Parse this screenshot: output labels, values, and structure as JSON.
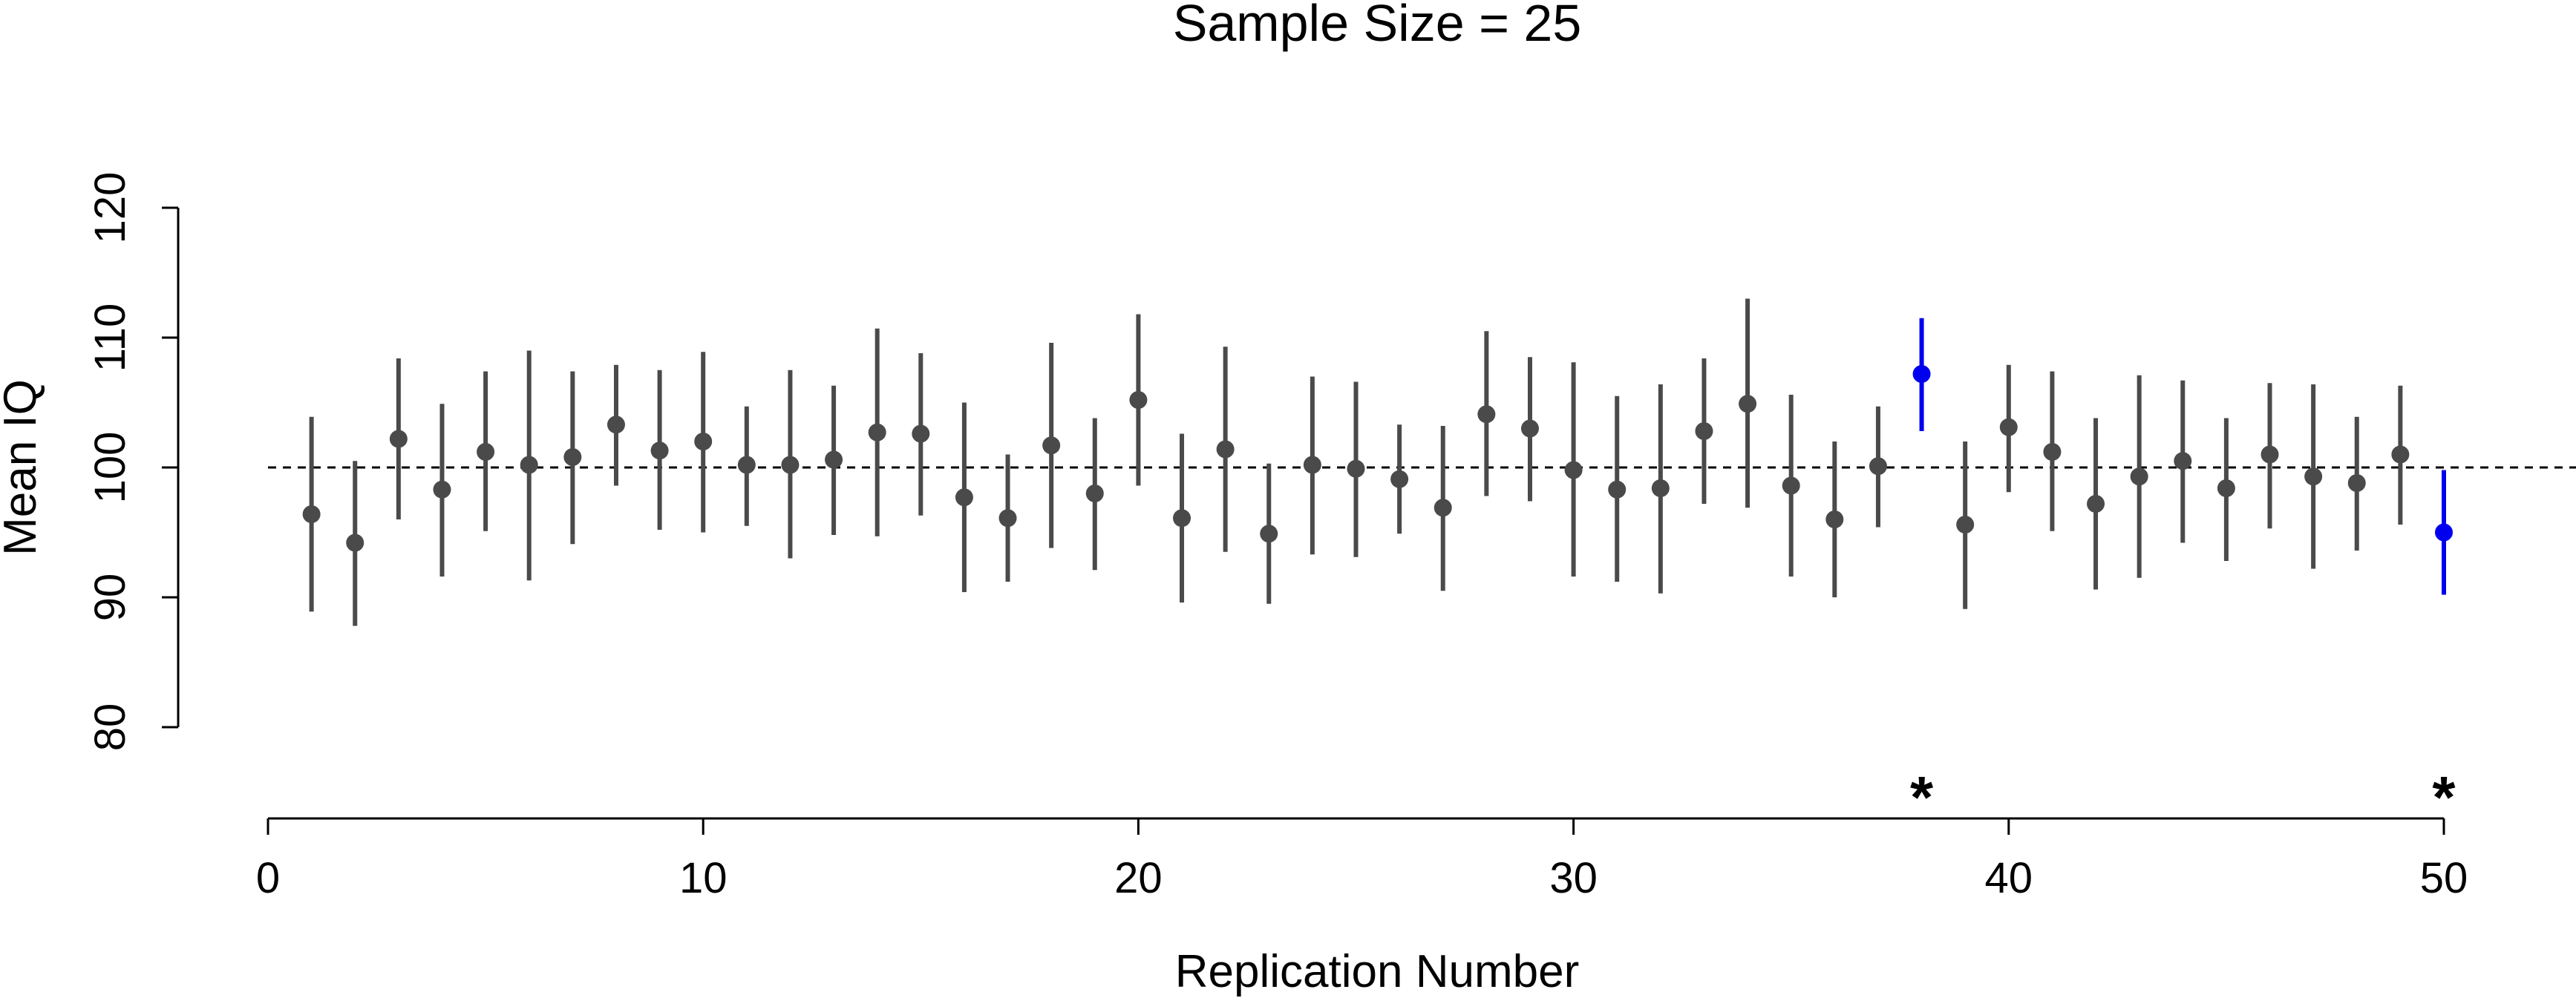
{
  "chart_data": {
    "type": "scatter",
    "title": "Sample Size = 25",
    "xlabel": "Replication Number",
    "ylabel": "Mean IQ",
    "xlim": [
      0,
      50
    ],
    "ylim": [
      80,
      120
    ],
    "x_ticks": [
      0,
      10,
      20,
      30,
      40,
      50
    ],
    "y_ticks": [
      80,
      90,
      100,
      110,
      120
    ],
    "reference_line": 100,
    "grid": false,
    "colors": {
      "normal": "#4a4a4a",
      "miss": "#0000ee",
      "reference": "#000000"
    },
    "marker_symbol": "*",
    "series": [
      {
        "x": [
          1,
          2,
          3,
          4,
          5,
          6,
          7,
          8,
          9,
          10,
          11,
          12,
          13,
          14,
          15,
          16,
          17,
          18,
          19,
          20,
          21,
          22,
          23,
          24,
          25,
          26,
          27,
          28,
          29,
          30,
          31,
          32,
          33,
          34,
          35,
          36,
          37,
          38,
          39,
          40,
          41,
          42,
          43,
          44,
          45,
          46,
          47,
          48,
          49,
          50
        ],
        "mean": [
          96.4,
          94.2,
          102.2,
          98.3,
          101.2,
          100.2,
          100.8,
          103.3,
          101.3,
          102.0,
          100.2,
          100.2,
          100.6,
          102.7,
          102.6,
          97.7,
          96.1,
          101.7,
          98.0,
          105.2,
          96.1,
          101.4,
          94.9,
          100.2,
          99.9,
          99.1,
          96.9,
          104.1,
          103.0,
          99.8,
          98.3,
          98.4,
          102.8,
          104.9,
          98.6,
          96.0,
          100.1,
          107.2,
          95.6,
          103.1,
          101.2,
          97.2,
          99.3,
          100.5,
          98.4,
          101.0,
          99.3,
          98.8,
          101.0,
          95.0
        ],
        "lower": [
          88.9,
          87.8,
          96.0,
          91.6,
          95.1,
          91.3,
          94.1,
          98.6,
          95.2,
          95.0,
          95.5,
          93.0,
          94.8,
          94.7,
          96.3,
          90.4,
          91.2,
          93.8,
          92.1,
          98.6,
          89.6,
          93.5,
          89.5,
          93.3,
          93.1,
          94.9,
          90.5,
          97.8,
          97.4,
          91.6,
          91.2,
          90.3,
          97.2,
          96.9,
          91.6,
          90.0,
          95.4,
          102.8,
          89.1,
          98.1,
          95.1,
          90.6,
          91.5,
          94.2,
          92.8,
          95.3,
          92.2,
          93.6,
          95.6,
          90.2
        ],
        "upper": [
          103.9,
          100.5,
          108.4,
          104.9,
          107.4,
          109.0,
          107.4,
          107.9,
          107.5,
          108.9,
          104.7,
          107.5,
          106.3,
          110.7,
          108.8,
          105.0,
          101.0,
          109.6,
          103.8,
          111.8,
          102.6,
          109.3,
          100.3,
          107.0,
          106.6,
          103.3,
          103.2,
          110.5,
          108.5,
          108.1,
          105.5,
          106.4,
          108.4,
          113.0,
          105.6,
          102.0,
          104.7,
          111.5,
          102.0,
          107.9,
          107.4,
          103.8,
          107.1,
          106.7,
          103.8,
          106.5,
          106.4,
          103.9,
          106.3,
          99.8
        ],
        "excludes_reference": [
          false,
          false,
          false,
          false,
          false,
          false,
          false,
          false,
          false,
          false,
          false,
          false,
          false,
          false,
          false,
          false,
          false,
          false,
          false,
          false,
          false,
          false,
          false,
          false,
          false,
          false,
          false,
          false,
          false,
          false,
          false,
          false,
          false,
          false,
          false,
          false,
          false,
          true,
          false,
          false,
          false,
          false,
          false,
          false,
          false,
          false,
          false,
          false,
          false,
          true
        ]
      }
    ]
  }
}
